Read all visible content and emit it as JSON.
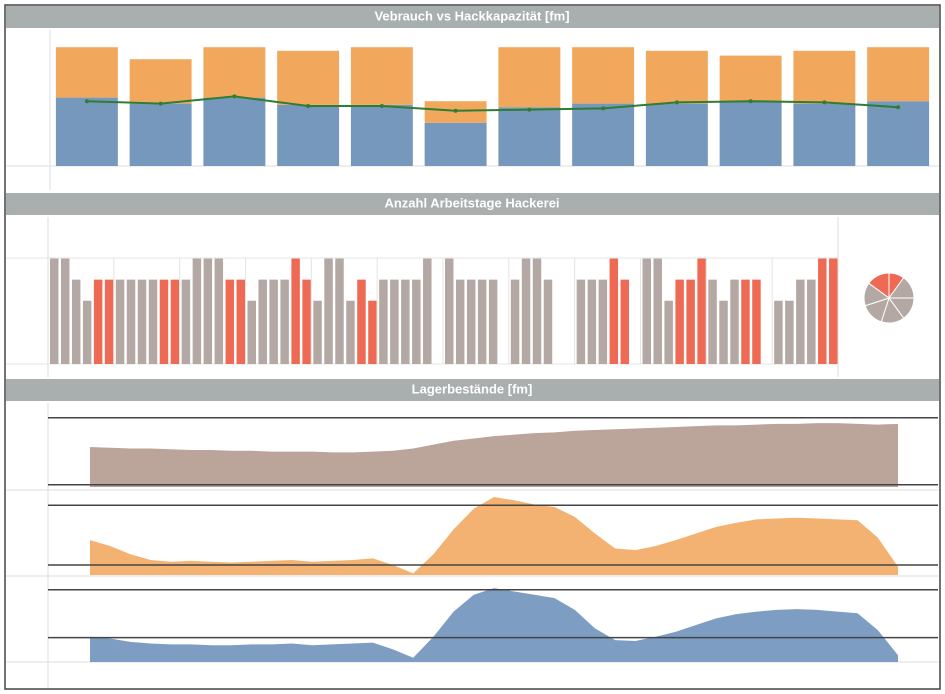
{
  "chart_data": [
    {
      "type": "bar",
      "stacked": true,
      "title": "Vebrauch vs Hackkapazität [fm]",
      "ylim": [
        0,
        100
      ],
      "series": [
        {
          "color": "#7698bd",
          "values": [
            57,
            52,
            57,
            51,
            51,
            36,
            49,
            52,
            52,
            54,
            52,
            54
          ]
        },
        {
          "color": "#f2a85c",
          "values": [
            42,
            37,
            42,
            45,
            48,
            18,
            50,
            47,
            44,
            38,
            44,
            45
          ]
        },
        {
          "type": "line",
          "color": "#2e7d32",
          "values": [
            54,
            52,
            58,
            50,
            50,
            46,
            47,
            48,
            53,
            54,
            53,
            49
          ]
        }
      ]
    },
    {
      "type": "grouped-bar",
      "title": "Anzahl Arbeitstage Hackerei",
      "ylim": [
        0,
        5.5
      ],
      "groups": [
        {
          "values": [
            5,
            5,
            4,
            3,
            4,
            4
          ],
          "colors": [
            "#b3a8a3",
            "#b3a8a3",
            "#b3a8a3",
            "#b3a8a3",
            "#ee6a55",
            "#ee6a55"
          ]
        },
        {
          "values": [
            4,
            4,
            4,
            4,
            4,
            4
          ],
          "colors": [
            "#b3a8a3",
            "#b3a8a3",
            "#b3a8a3",
            "#b3a8a3",
            "#ee6a55",
            "#ee6a55"
          ]
        },
        {
          "values": [
            4,
            5,
            5,
            5,
            4,
            4
          ],
          "colors": [
            "#b3a8a3",
            "#b3a8a3",
            "#b3a8a3",
            "#b3a8a3",
            "#ee6a55",
            "#ee6a55"
          ]
        },
        {
          "values": [
            3,
            4,
            4,
            4,
            5,
            4
          ],
          "colors": [
            "#b3a8a3",
            "#b3a8a3",
            "#b3a8a3",
            "#b3a8a3",
            "#ee6a55",
            "#ee6a55"
          ]
        },
        {
          "values": [
            3,
            5,
            5,
            3,
            4,
            3
          ],
          "colors": [
            "#b3a8a3",
            "#b3a8a3",
            "#b3a8a3",
            "#b3a8a3",
            "#ee6a55",
            "#ee6a55"
          ]
        },
        {
          "values": [
            4,
            4,
            4,
            4,
            5
          ],
          "colors": [
            "#b3a8a3",
            "#b3a8a3",
            "#b3a8a3",
            "#b3a8a3",
            "#b3a8a3"
          ]
        },
        {
          "values": [
            5,
            4,
            4,
            4,
            4
          ],
          "colors": [
            "#b3a8a3",
            "#b3a8a3",
            "#b3a8a3",
            "#b3a8a3",
            "#b3a8a3"
          ]
        },
        {
          "values": [
            4,
            5,
            5,
            4
          ],
          "colors": [
            "#b3a8a3",
            "#b3a8a3",
            "#b3a8a3",
            "#b3a8a3"
          ]
        },
        {
          "values": [
            4,
            4,
            4,
            5,
            4
          ],
          "colors": [
            "#b3a8a3",
            "#b3a8a3",
            "#b3a8a3",
            "#ee6a55",
            "#ee6a55"
          ]
        },
        {
          "values": [
            5,
            5,
            3,
            4,
            4,
            5
          ],
          "colors": [
            "#b3a8a3",
            "#b3a8a3",
            "#b3a8a3",
            "#ee6a55",
            "#ee6a55",
            "#ee6a55"
          ]
        },
        {
          "values": [
            4,
            3,
            4,
            4,
            4
          ],
          "colors": [
            "#b3a8a3",
            "#b3a8a3",
            "#b3a8a3",
            "#ee6a55",
            "#ee6a55"
          ]
        },
        {
          "values": [
            3,
            3,
            4,
            4,
            5,
            5
          ],
          "colors": [
            "#b3a8a3",
            "#b3a8a3",
            "#b3a8a3",
            "#b3a8a3",
            "#ee6a55",
            "#ee6a55"
          ]
        }
      ]
    },
    {
      "type": "pie",
      "values": [
        15,
        10,
        15,
        15,
        15,
        15,
        15
      ],
      "colors": [
        "#ee6a55",
        "#ee6a55",
        "#b3a8a3",
        "#b3a8a3",
        "#b3a8a3",
        "#b3a8a3",
        "#b3a8a3"
      ]
    },
    {
      "type": "area",
      "title": "Lagerbestände [fm]",
      "ylim": [
        0,
        100
      ],
      "series": [
        {
          "color": "#bba59a",
          "reference_lines": [
            90,
            3
          ],
          "values": [
            52,
            51,
            50,
            50,
            49,
            48,
            48,
            47,
            47,
            46,
            46,
            46,
            45,
            45,
            46,
            47,
            50,
            55,
            60,
            63,
            66,
            68,
            70,
            71,
            73,
            74,
            75,
            76,
            77,
            78,
            79,
            80,
            80,
            81,
            82,
            82,
            83,
            83,
            82,
            81,
            82
          ]
        },
        {
          "color": "#f4b272",
          "reference_lines": [
            84,
            12
          ],
          "values": [
            42,
            35,
            25,
            18,
            16,
            17,
            16,
            15,
            16,
            17,
            18,
            16,
            17,
            18,
            20,
            12,
            2,
            25,
            55,
            80,
            94,
            90,
            85,
            82,
            70,
            50,
            32,
            30,
            35,
            42,
            50,
            58,
            63,
            67,
            68,
            69,
            68,
            67,
            66,
            45,
            10
          ]
        },
        {
          "color": "#7e9dc2",
          "reference_lines": [
            86,
            29
          ],
          "values": [
            30,
            28,
            24,
            22,
            21,
            21,
            20,
            20,
            21,
            21,
            22,
            20,
            21,
            22,
            23,
            15,
            5,
            30,
            60,
            80,
            88,
            84,
            80,
            76,
            62,
            40,
            26,
            25,
            30,
            36,
            44,
            52,
            57,
            60,
            62,
            63,
            62,
            60,
            58,
            38,
            8
          ]
        }
      ]
    }
  ]
}
